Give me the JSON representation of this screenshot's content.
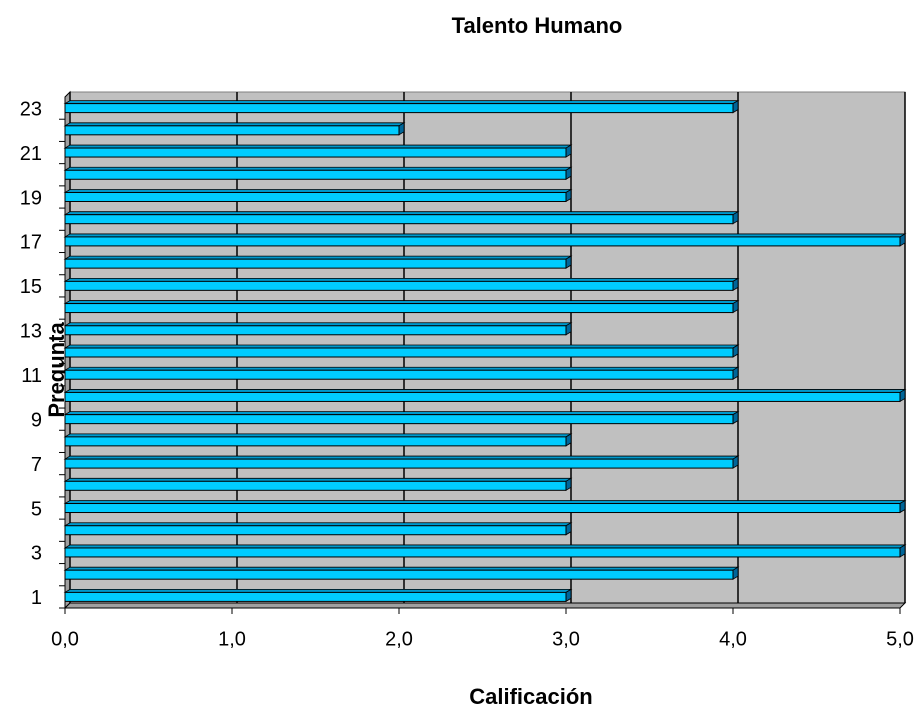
{
  "chart_data": {
    "type": "bar",
    "orientation": "horizontal",
    "title": "Talento Humano",
    "x_label": "Calificación",
    "y_label": "Pregunta",
    "categories": [
      "1",
      null,
      "3",
      null,
      "5",
      null,
      "7",
      null,
      "9",
      null,
      "11",
      null,
      "13",
      null,
      "15",
      null,
      "17",
      null,
      "19",
      null,
      "21",
      null,
      "23"
    ],
    "values": [
      3,
      4,
      5,
      3,
      5,
      3,
      4,
      3,
      4,
      5,
      4,
      4,
      3,
      4,
      4,
      3,
      5,
      4,
      3,
      3,
      3,
      2,
      4
    ],
    "color": "#00ccff",
    "xlim": [
      0,
      5
    ],
    "xticks": [
      {
        "value": 0,
        "label": "0,0"
      },
      {
        "value": 1,
        "label": "1,0"
      },
      {
        "value": 2,
        "label": "2,0"
      },
      {
        "value": 3,
        "label": "3,0"
      },
      {
        "value": 4,
        "label": "4,0"
      },
      {
        "value": 5,
        "label": "5,0"
      }
    ],
    "grid": true
  }
}
